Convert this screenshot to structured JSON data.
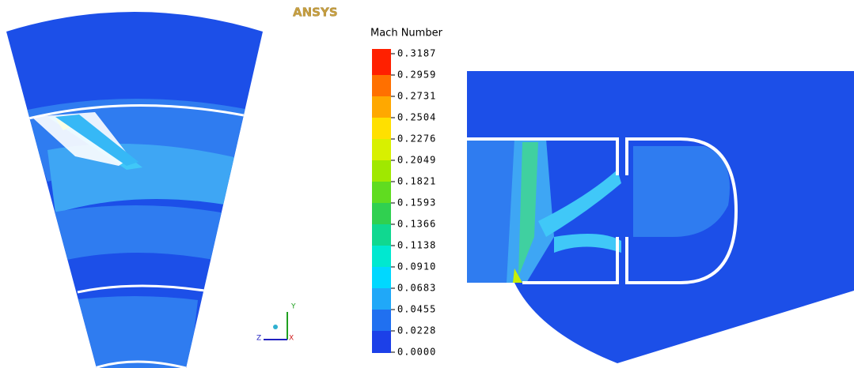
{
  "logo": "ANSYS",
  "legend": {
    "title": "Mach Number",
    "labels": [
      "0.3187",
      "0.2959",
      "0.2731",
      "0.2504",
      "0.2276",
      "0.2049",
      "0.1821",
      "0.1593",
      "0.1366",
      "0.1138",
      "0.0910",
      "0.0683",
      "0.0455",
      "0.0228",
      "0.0000"
    ]
  },
  "axes": {
    "y": "Y",
    "z": "Z",
    "x": "X"
  }
}
